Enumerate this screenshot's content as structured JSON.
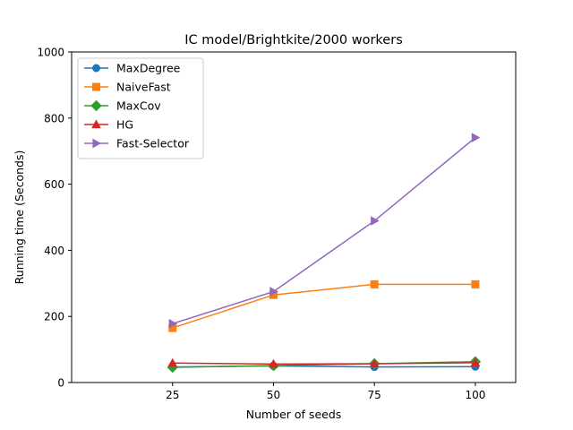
{
  "chart_data": {
    "type": "line",
    "title": "IC model/Brightkite/2000 workers",
    "xlabel": "Number of seeds",
    "ylabel": "Running time (Seconds)",
    "x": [
      25,
      50,
      75,
      100
    ],
    "xlim": [
      0,
      110
    ],
    "ylim": [
      0,
      1000
    ],
    "xticks": [
      25,
      50,
      75,
      100
    ],
    "yticks": [
      0,
      200,
      400,
      600,
      800,
      1000
    ],
    "grid": false,
    "legend_position": "top-left",
    "series": [
      {
        "name": "MaxDegree",
        "values": [
          47,
          50,
          47,
          48
        ],
        "color": "#1f77b4",
        "marker": "circle"
      },
      {
        "name": "NaiveFast",
        "values": [
          165,
          265,
          297,
          297
        ],
        "color": "#ff7f0e",
        "marker": "square"
      },
      {
        "name": "MaxCov",
        "values": [
          46,
          51,
          57,
          63
        ],
        "color": "#2ca02c",
        "marker": "diamond"
      },
      {
        "name": "HG",
        "values": [
          59,
          56,
          57,
          60
        ],
        "color": "#d62728",
        "marker": "triangle-up"
      },
      {
        "name": "Fast-Selector",
        "values": [
          178,
          275,
          489,
          741
        ],
        "color": "#9467bd",
        "marker": "triangle-right"
      }
    ]
  }
}
